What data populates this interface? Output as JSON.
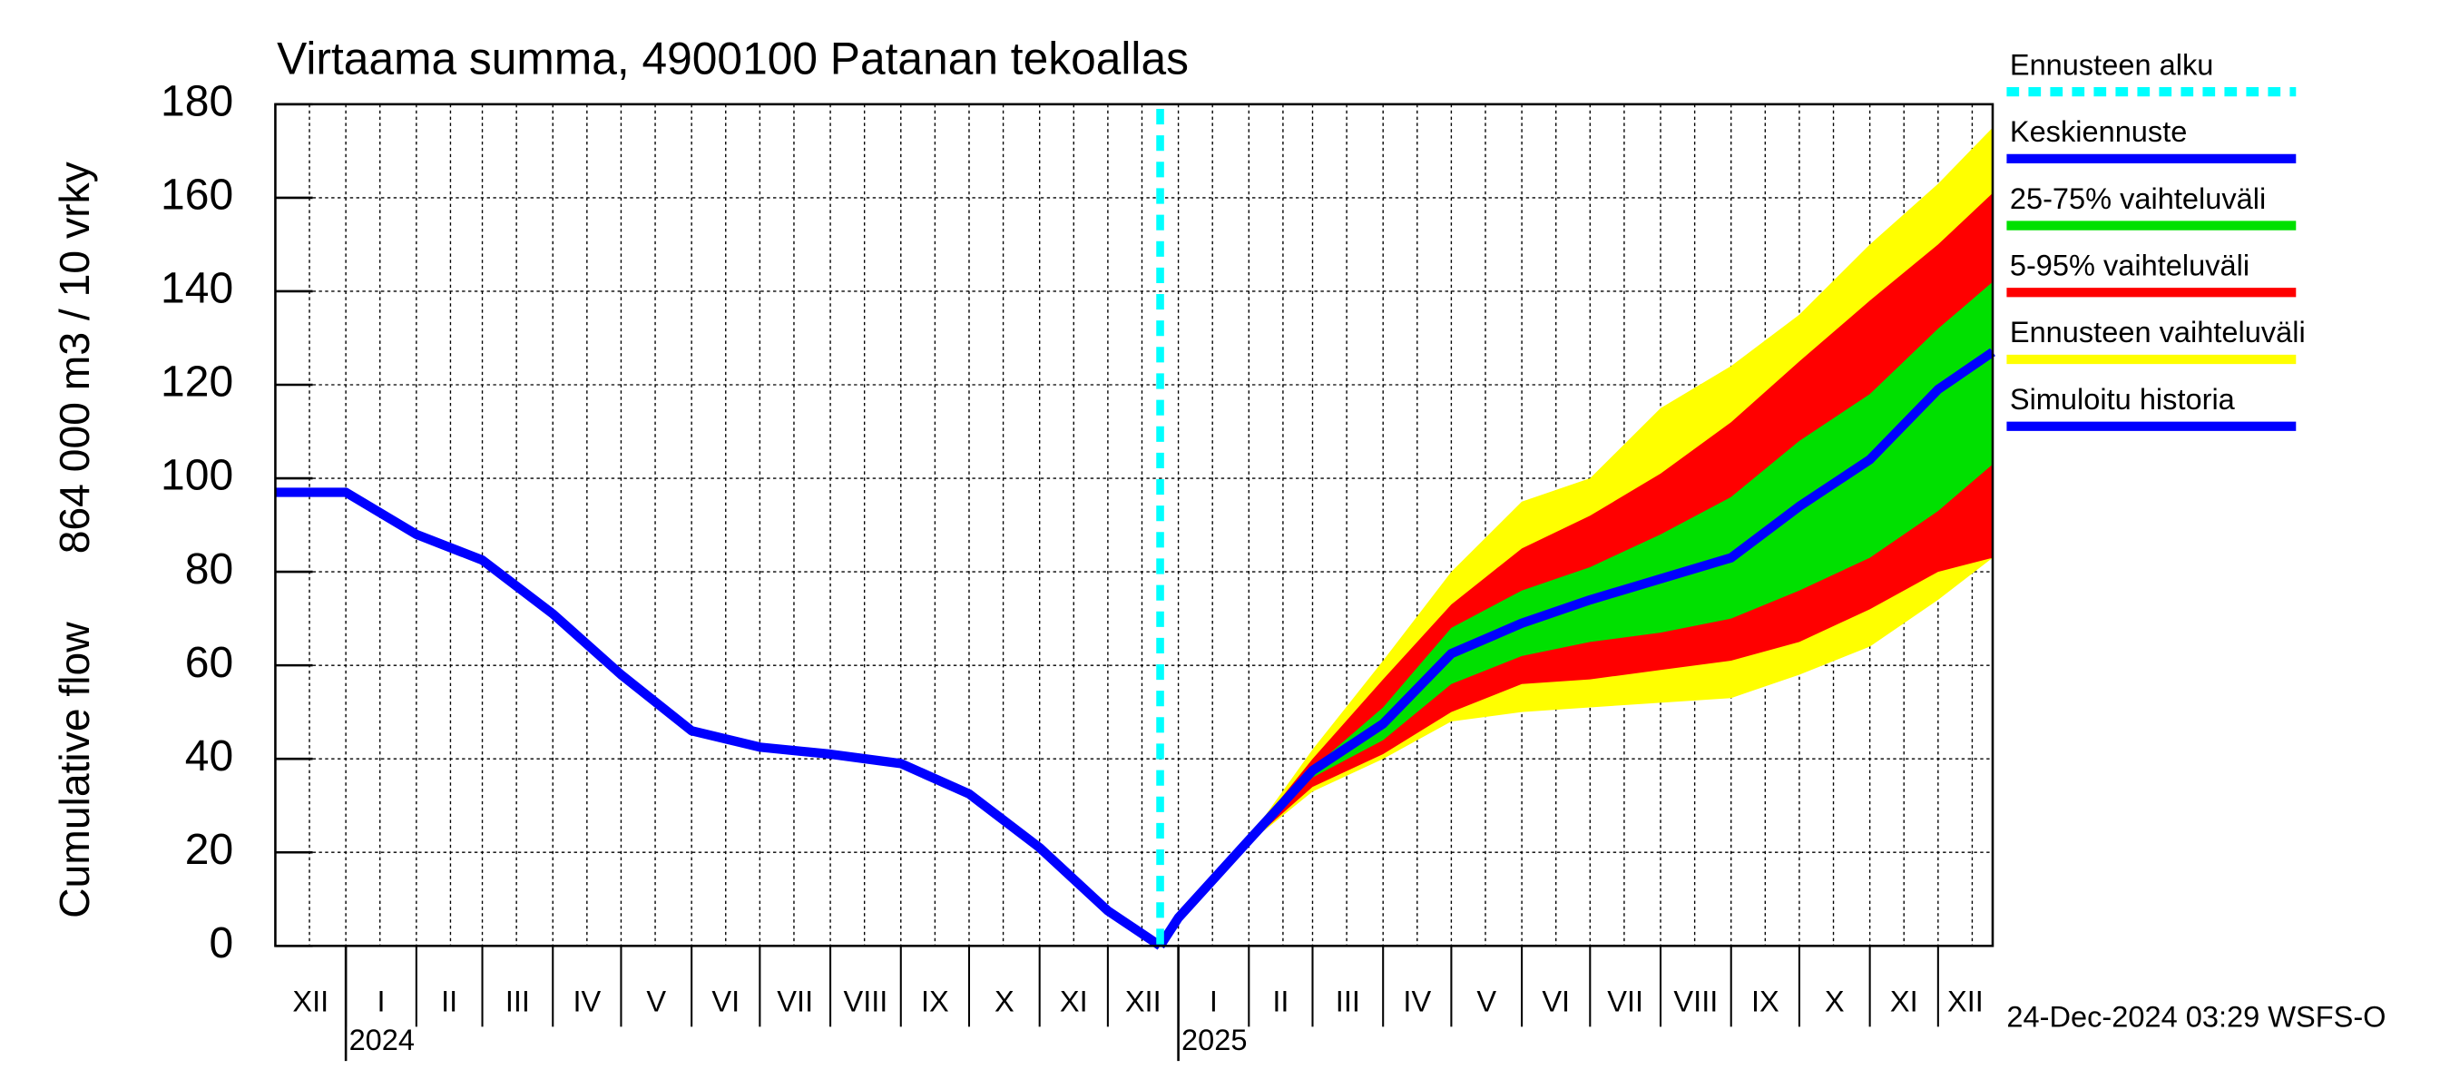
{
  "chart_data": {
    "type": "line",
    "title": "Virtaama summa, 4900100 Patanan tekoallas",
    "ylabel": [
      "Cumulative flow",
      "864 000 m3 / 10 vrky"
    ],
    "x": [
      "2023-12",
      "2024-01",
      "2024-02",
      "2024-03",
      "2024-04",
      "2024-05",
      "2024-06",
      "2024-07",
      "2024-08",
      "2024-09",
      "2024-10",
      "2024-11",
      "2024-12",
      "2024-12-24",
      "2025-01",
      "2025-02",
      "2025-03",
      "2025-04",
      "2025-05",
      "2025-06",
      "2025-07",
      "2025-08",
      "2025-09",
      "2025-10",
      "2025-11",
      "2025-12",
      "2025-12-25"
    ],
    "xlim": [
      "2023-12-01",
      "2025-12-25"
    ],
    "xticks": [
      {
        "value": "2024-01",
        "label": "2024"
      },
      {
        "value": "2025-01",
        "label": "2025"
      }
    ],
    "month_labels": [
      "XII",
      "I",
      "II",
      "III",
      "IV",
      "V",
      "VI",
      "VII",
      "VIII",
      "IX",
      "X",
      "XI",
      "XII",
      "I",
      "II",
      "III",
      "IV",
      "V",
      "VI",
      "VII",
      "VIII",
      "IX",
      "X",
      "XI",
      "XII"
    ],
    "ylim": [
      0,
      180
    ],
    "yticks": [
      0,
      20,
      40,
      60,
      80,
      100,
      120,
      140,
      160,
      180
    ],
    "grid": true,
    "legend": "right",
    "timestamp": "24-Dec-2024 03:29 WSFS-O",
    "series": [
      {
        "name": "Ennusteen alku",
        "kind": "vline",
        "color": "#00ffff",
        "x": "2024-12-24"
      },
      {
        "name": "Keskiennuste",
        "kind": "line",
        "color": "#0000ff",
        "values": [
          null,
          null,
          null,
          null,
          null,
          null,
          null,
          null,
          null,
          null,
          null,
          null,
          null,
          0,
          6,
          22.6,
          37.5,
          47.5,
          62.5,
          69,
          74,
          78.5,
          83,
          94,
          104,
          119,
          127
        ]
      },
      {
        "name": "25-75% vaihteluväli",
        "kind": "band",
        "color": "#00e000",
        "low": [
          null,
          null,
          null,
          null,
          null,
          null,
          null,
          null,
          null,
          null,
          null,
          null,
          null,
          0,
          6,
          22,
          36,
          44,
          56,
          62,
          65,
          67,
          70,
          76,
          83,
          93,
          103
        ],
        "high": [
          null,
          null,
          null,
          null,
          null,
          null,
          null,
          null,
          null,
          null,
          null,
          null,
          null,
          0,
          6,
          23,
          38,
          51,
          68,
          76,
          81,
          88,
          96,
          108,
          118,
          132,
          142
        ]
      },
      {
        "name": "5-95% vaihteluväli",
        "kind": "band",
        "color": "#ff0000",
        "low": [
          null,
          null,
          null,
          null,
          null,
          null,
          null,
          null,
          null,
          null,
          null,
          null,
          null,
          0,
          6,
          22,
          34,
          41,
          50,
          56,
          57,
          59,
          61,
          65,
          72,
          80,
          83
        ],
        "high": [
          null,
          null,
          null,
          null,
          null,
          null,
          null,
          null,
          null,
          null,
          null,
          null,
          null,
          0,
          6,
          23,
          40,
          57,
          73,
          85,
          92,
          101,
          112,
          125,
          138,
          150,
          161
        ]
      },
      {
        "name": "Ennusteen vaihteluväli",
        "kind": "band",
        "color": "#ffff00",
        "low": [
          null,
          null,
          null,
          null,
          null,
          null,
          null,
          null,
          null,
          null,
          null,
          null,
          null,
          0,
          6,
          22,
          33,
          40,
          48,
          50,
          51,
          52,
          53,
          58,
          64,
          74,
          83
        ],
        "high": [
          null,
          null,
          null,
          null,
          null,
          null,
          null,
          null,
          null,
          null,
          null,
          null,
          null,
          0,
          6,
          23,
          42,
          61,
          80,
          95,
          100,
          115,
          124,
          135,
          150,
          163,
          175
        ]
      },
      {
        "name": "Simuloitu historia",
        "kind": "line",
        "color": "#0000ff",
        "values": [
          97,
          97,
          88,
          82.5,
          71,
          58,
          46,
          42.5,
          41,
          39,
          32.5,
          21,
          7.5,
          0,
          null,
          null,
          null,
          null,
          null,
          null,
          null,
          null,
          null,
          null,
          null,
          null,
          null
        ]
      }
    ]
  }
}
